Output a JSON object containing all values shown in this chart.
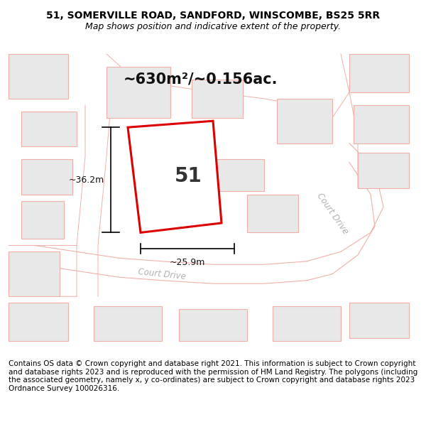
{
  "title": "51, SOMERVILLE ROAD, SANDFORD, WINSCOMBE, BS25 5RR",
  "subtitle": "Map shows position and indicative extent of the property.",
  "area_label": "~630m²/~0.156ac.",
  "dim_left": "~36.2m",
  "dim_bottom": "~25.9m",
  "property_label": "51",
  "road_label_1": "Court Drive",
  "road_label_2": "Court Drive",
  "footer": "Contains OS data © Crown copyright and database right 2021. This information is subject to Crown copyright and database rights 2023 and is reproduced with the permission of HM Land Registry. The polygons (including the associated geometry, namely x, y co-ordinates) are subject to Crown copyright and database rights 2023 Ordnance Survey 100026316.",
  "map_bg": "#ffffff",
  "building_color": "#e8e8e8",
  "building_edge": "#f0b0a8",
  "road_line_color": "#f0b0a8",
  "property_edge": "#dd0000",
  "title_fontsize": 10,
  "subtitle_fontsize": 9,
  "footer_fontsize": 7.5
}
